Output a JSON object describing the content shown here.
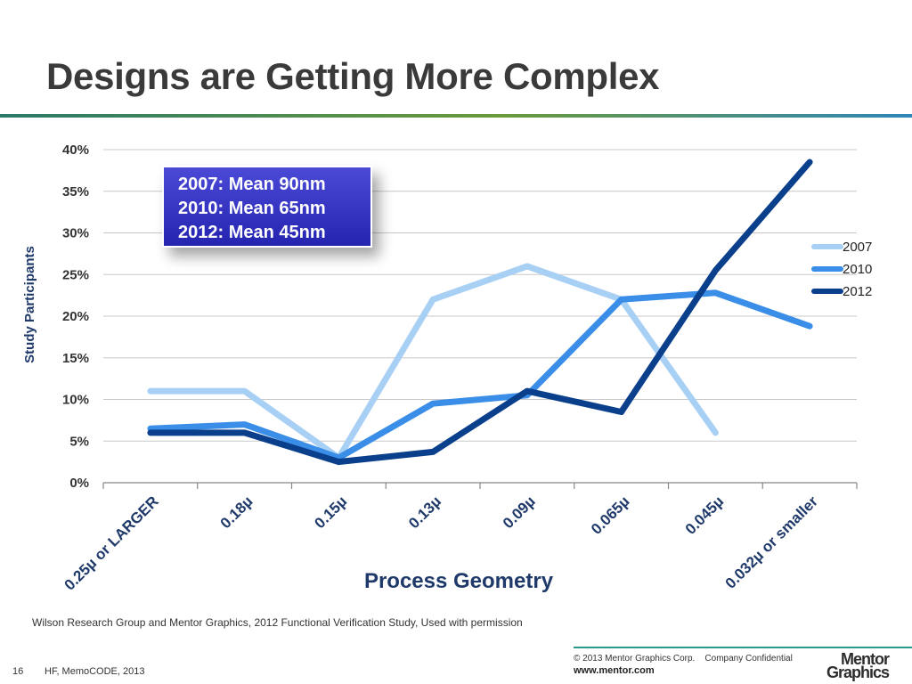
{
  "slide": {
    "title": "Designs are Getting More Complex",
    "source": "Wilson Research Group and Mentor Graphics, 2012 Functional Verification Study,   Used with permission",
    "page_number": "16",
    "footer_left": "HF, MemoCODE, 2013",
    "copyright": "© 2013 Mentor Graphics Corp.    Company Confidential",
    "url": "www.mentor.com",
    "logo_line1": "Mentor",
    "logo_line2": "Graphics",
    "accent_colors": [
      "#2a7a6a",
      "#6a9a3a",
      "#2f86b8"
    ]
  },
  "callout": {
    "lines": [
      "2007: Mean 90nm",
      "2010: Mean 65nm",
      "2012: Mean 45nm"
    ],
    "background": "#3333c4"
  },
  "chart_data": {
    "type": "line",
    "title": "",
    "xlabel": "Process Geometry",
    "ylabel": "Study Participants",
    "categories": [
      "0.25µ or LARGER",
      "0.18µ",
      "0.15µ",
      "0.13µ",
      "0.09µ",
      "0.065µ",
      "0.045µ",
      "0.032µ or smaller"
    ],
    "ylim": [
      0,
      40
    ],
    "yticks": [
      "0%",
      "5%",
      "10%",
      "15%",
      "20%",
      "25%",
      "30%",
      "35%",
      "40%"
    ],
    "grid": true,
    "legend_position": "right",
    "series": [
      {
        "name": "2007",
        "color": "#a8d0f5",
        "values": [
          11,
          11,
          3,
          22,
          26,
          22,
          6,
          null
        ]
      },
      {
        "name": "2010",
        "color": "#3a8ee8",
        "values": [
          6.5,
          7,
          3,
          9.5,
          10.5,
          22,
          22.8,
          18.8
        ]
      },
      {
        "name": "2012",
        "color": "#0a3f8c",
        "values": [
          6,
          6,
          2.5,
          3.7,
          11,
          8.5,
          25.5,
          38.5
        ]
      }
    ]
  }
}
